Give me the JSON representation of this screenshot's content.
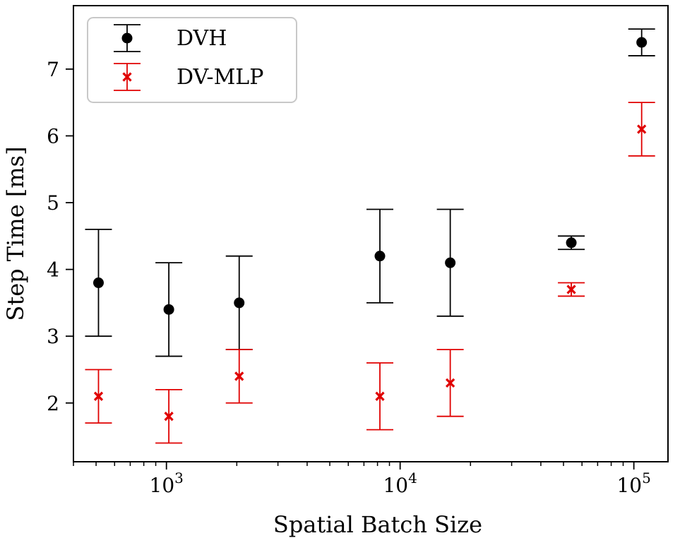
{
  "chart_data": {
    "type": "scatter",
    "xlabel": "Spatial Batch Size",
    "ylabel": "Step Time [ms]",
    "x_scale": "log",
    "xlim": [
      400,
      140000
    ],
    "ylim": [
      1.12,
      7.95
    ],
    "x_ticks": [
      {
        "value": 1000,
        "base": "10",
        "exp": "3"
      },
      {
        "value": 10000,
        "base": "10",
        "exp": "4"
      },
      {
        "value": 100000,
        "base": "10",
        "exp": "5"
      }
    ],
    "y_ticks": [
      2,
      3,
      4,
      5,
      6,
      7
    ],
    "grid": false,
    "legend_position": "top-left",
    "series": [
      {
        "name": "DVH",
        "color": "#000000",
        "marker": "circle",
        "x": [
          512,
          1024,
          2048,
          8192,
          16384,
          54000,
          108000
        ],
        "y": [
          3.8,
          3.4,
          3.5,
          4.2,
          4.1,
          4.4,
          7.4
        ],
        "err_low": [
          3.0,
          2.7,
          2.8,
          3.5,
          3.3,
          4.3,
          7.2
        ],
        "err_high": [
          4.6,
          4.1,
          4.2,
          4.9,
          4.9,
          4.5,
          7.6
        ]
      },
      {
        "name": "DV-MLP",
        "color": "#e00000",
        "marker": "x",
        "x": [
          512,
          1024,
          2048,
          8192,
          16384,
          54000,
          108000
        ],
        "y": [
          2.1,
          1.8,
          2.4,
          2.1,
          2.3,
          3.7,
          6.1
        ],
        "err_low": [
          1.7,
          1.4,
          2.0,
          1.6,
          1.8,
          3.6,
          5.7
        ],
        "err_high": [
          2.5,
          2.2,
          2.8,
          2.6,
          2.8,
          3.8,
          6.5
        ]
      }
    ]
  }
}
